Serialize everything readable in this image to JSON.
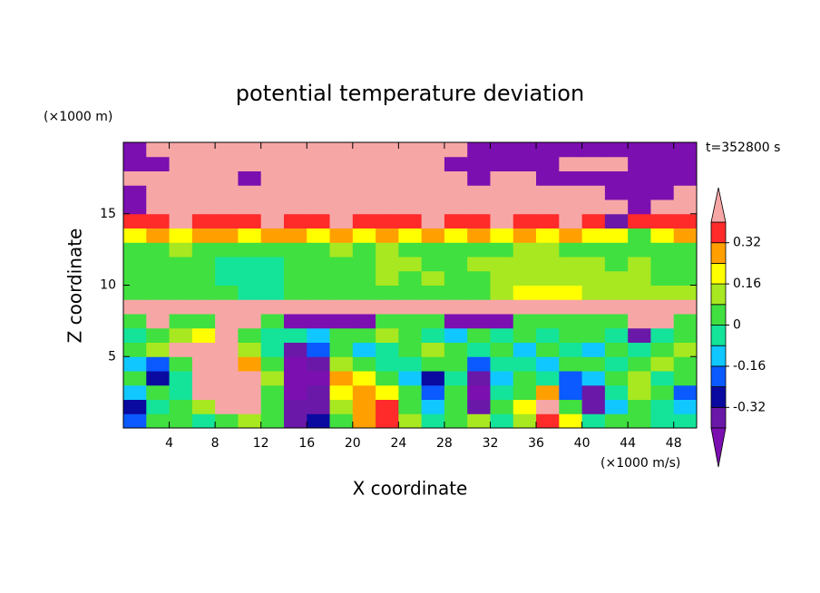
{
  "chart_data": {
    "type": "contour",
    "title": "potential temperature deviation",
    "x_label": "X coordinate",
    "y_label": "Z coordinate",
    "x_unit": "(×1000 m/s)",
    "y_unit": "(×1000 m)",
    "annotation": "t=352800 s",
    "xlim": [
      0,
      50
    ],
    "ylim": [
      0,
      20
    ],
    "xticks": [
      4,
      8,
      12,
      16,
      20,
      24,
      28,
      32,
      36,
      40,
      44,
      48
    ],
    "yticks": [
      5,
      10,
      15
    ],
    "levels": [
      -0.4,
      -0.32,
      -0.24,
      -0.16,
      -0.08,
      0,
      0.08,
      0.16,
      0.24,
      0.32,
      0.4
    ],
    "colors": [
      "#7b0fb0",
      "#6a18a8",
      "#0a0aa0",
      "#0a5aff",
      "#10c8ff",
      "#14e39a",
      "#40e040",
      "#a8e820",
      "#ffff00",
      "#ffa000",
      "#ff2a2a",
      "#f7a6a6"
    ],
    "colorbar_ticks": [
      0.32,
      0.16,
      0,
      -0.16,
      -0.32
    ],
    "x": [
      1,
      3,
      5,
      7,
      9,
      11,
      13,
      15,
      17,
      19,
      21,
      23,
      25,
      27,
      29,
      31,
      33,
      35,
      37,
      39,
      41,
      43,
      45,
      47,
      49
    ],
    "y": [
      0.5,
      1.5,
      2.5,
      3.5,
      4.5,
      5.5,
      6.5,
      7.5,
      8.5,
      9.5,
      10.5,
      11.5,
      12.5,
      13.5,
      14.5,
      15.5,
      16.5,
      17.5,
      18.5,
      19.5
    ],
    "z": [
      [
        -0.2,
        0.03,
        0.03,
        -0.05,
        0.03,
        0.1,
        0.03,
        -0.36,
        -0.28,
        0.03,
        0.26,
        0.36,
        0.1,
        -0.05,
        0.03,
        0.1,
        -0.05,
        0.1,
        0.36,
        0.18,
        -0.05,
        0.03,
        0.03,
        -0.05,
        -0.05
      ],
      [
        -0.28,
        -0.05,
        0.03,
        0.1,
        0.5,
        0.5,
        0.03,
        -0.36,
        -0.36,
        0.1,
        0.26,
        0.36,
        0.03,
        -0.12,
        0.03,
        -0.36,
        0.03,
        0.18,
        0.5,
        0.03,
        -0.36,
        -0.12,
        0.03,
        -0.05,
        -0.12
      ],
      [
        -0.12,
        0.03,
        -0.05,
        0.5,
        0.5,
        0.5,
        0.03,
        -0.5,
        -0.36,
        0.18,
        0.26,
        0.18,
        0.03,
        -0.2,
        0.03,
        -0.5,
        -0.05,
        0.03,
        0.26,
        -0.2,
        -0.36,
        -0.05,
        0.1,
        0.03,
        -0.2
      ],
      [
        0.03,
        -0.28,
        -0.05,
        0.5,
        0.5,
        0.5,
        0.1,
        -0.5,
        -0.5,
        0.26,
        0.18,
        0.03,
        -0.12,
        -0.28,
        -0.05,
        -0.36,
        -0.12,
        0.03,
        -0.05,
        -0.2,
        -0.12,
        0.03,
        0.1,
        -0.05,
        0.03
      ],
      [
        -0.12,
        -0.2,
        0.03,
        0.5,
        0.5,
        0.26,
        0.03,
        -0.5,
        -0.36,
        0.1,
        0.03,
        -0.05,
        -0.05,
        0.03,
        0.03,
        -0.2,
        -0.05,
        -0.05,
        -0.12,
        0.03,
        0.03,
        -0.05,
        0.03,
        0.1,
        0.03
      ],
      [
        0.03,
        0.1,
        0.5,
        0.5,
        0.5,
        0.1,
        -0.05,
        -0.36,
        -0.2,
        0.03,
        -0.12,
        -0.05,
        0.03,
        0.1,
        0.03,
        -0.05,
        0.03,
        -0.12,
        0.03,
        -0.05,
        -0.12,
        0.03,
        -0.05,
        0.03,
        0.1
      ],
      [
        -0.05,
        0.03,
        0.1,
        0.18,
        0.5,
        0.03,
        -0.05,
        -0.05,
        -0.12,
        0.03,
        0.03,
        0.1,
        0.03,
        -0.05,
        -0.12,
        0.03,
        -0.05,
        0.03,
        -0.05,
        0.03,
        0.03,
        -0.05,
        -0.36,
        -0.05,
        0.03
      ],
      [
        0.03,
        0.5,
        0.03,
        0.03,
        0.5,
        0.5,
        0.03,
        -0.5,
        -0.5,
        -0.5,
        -0.5,
        0.03,
        0.03,
        0.03,
        -0.5,
        -0.5,
        -0.5,
        0.03,
        0.03,
        0.03,
        0.03,
        0.03,
        0.5,
        0.5,
        0.03
      ],
      [
        0.5,
        0.5,
        0.5,
        0.5,
        0.5,
        0.5,
        0.5,
        0.5,
        0.5,
        0.5,
        0.5,
        0.5,
        0.5,
        0.5,
        0.5,
        0.5,
        0.5,
        0.5,
        0.5,
        0.5,
        0.5,
        0.5,
        0.5,
        0.5,
        0.5
      ],
      [
        0.03,
        0.03,
        0.03,
        0.03,
        0.03,
        -0.05,
        -0.05,
        0.03,
        0.03,
        0.03,
        0.03,
        0.03,
        0.03,
        0.03,
        0.03,
        0.03,
        0.1,
        0.18,
        0.18,
        0.18,
        0.1,
        0.1,
        0.1,
        0.1,
        0.1
      ],
      [
        0.03,
        0.03,
        0.03,
        0.03,
        -0.05,
        -0.05,
        -0.05,
        0.03,
        0.03,
        0.03,
        0.03,
        0.1,
        0.03,
        0.1,
        0.03,
        0.03,
        0.1,
        0.1,
        0.1,
        0.1,
        0.1,
        0.1,
        0.1,
        0.03,
        0.03
      ],
      [
        0.03,
        0.03,
        0.03,
        0.03,
        -0.05,
        -0.05,
        -0.05,
        0.03,
        0.03,
        0.03,
        0.03,
        0.1,
        0.1,
        0.03,
        0.03,
        0.1,
        0.1,
        0.1,
        0.1,
        0.1,
        0.1,
        0.03,
        0.1,
        0.03,
        0.03
      ],
      [
        0.03,
        0.03,
        0.1,
        0.03,
        0.03,
        0.03,
        0.03,
        0.03,
        0.03,
        0.1,
        0.03,
        0.1,
        0.03,
        0.03,
        0.03,
        0.03,
        0.03,
        0.1,
        0.1,
        0.03,
        0.03,
        0.03,
        0.03,
        0.03,
        0.03
      ],
      [
        0.18,
        0.26,
        0.18,
        0.26,
        0.26,
        0.18,
        0.26,
        0.26,
        0.18,
        0.26,
        0.18,
        0.26,
        0.18,
        0.26,
        0.18,
        0.26,
        0.18,
        0.26,
        0.18,
        0.26,
        0.18,
        0.18,
        0.03,
        0.18,
        0.26
      ],
      [
        0.36,
        0.36,
        0.5,
        0.36,
        0.36,
        0.36,
        0.5,
        0.36,
        0.36,
        0.5,
        0.36,
        0.36,
        0.36,
        0.5,
        0.36,
        0.36,
        0.5,
        0.36,
        0.36,
        0.5,
        0.36,
        -0.36,
        0.36,
        0.36,
        0.36
      ],
      [
        -0.5,
        0.5,
        0.5,
        0.5,
        0.5,
        0.5,
        0.5,
        0.5,
        0.5,
        0.5,
        0.5,
        0.5,
        0.5,
        0.5,
        0.5,
        0.5,
        0.5,
        0.5,
        0.5,
        0.5,
        0.5,
        0.5,
        -0.5,
        0.5,
        0.5
      ],
      [
        -0.5,
        0.5,
        0.5,
        0.5,
        0.5,
        0.5,
        0.5,
        0.5,
        0.5,
        0.5,
        0.5,
        0.5,
        0.5,
        0.5,
        0.5,
        0.5,
        0.5,
        0.5,
        0.5,
        0.5,
        0.5,
        -0.5,
        -0.5,
        -0.5,
        0.5
      ],
      [
        0.5,
        0.5,
        0.5,
        0.5,
        0.5,
        -0.5,
        0.5,
        0.5,
        0.5,
        0.5,
        0.5,
        0.5,
        0.5,
        0.5,
        0.5,
        -0.5,
        0.5,
        0.5,
        -0.5,
        -0.5,
        -0.5,
        -0.5,
        -0.5,
        -0.5,
        -0.5
      ],
      [
        -0.5,
        -0.5,
        0.5,
        0.5,
        0.5,
        0.5,
        0.5,
        0.5,
        0.5,
        0.5,
        0.5,
        0.5,
        0.5,
        0.5,
        -0.5,
        -0.5,
        -0.5,
        -0.5,
        -0.5,
        0.5,
        0.5,
        0.5,
        -0.5,
        -0.5,
        -0.5
      ],
      [
        -0.5,
        0.5,
        0.5,
        0.5,
        0.5,
        0.5,
        0.5,
        0.5,
        0.5,
        0.5,
        0.5,
        0.5,
        0.5,
        0.5,
        0.5,
        -0.5,
        -0.5,
        -0.5,
        -0.5,
        -0.5,
        -0.5,
        -0.5,
        -0.5,
        -0.5,
        -0.5
      ]
    ]
  }
}
